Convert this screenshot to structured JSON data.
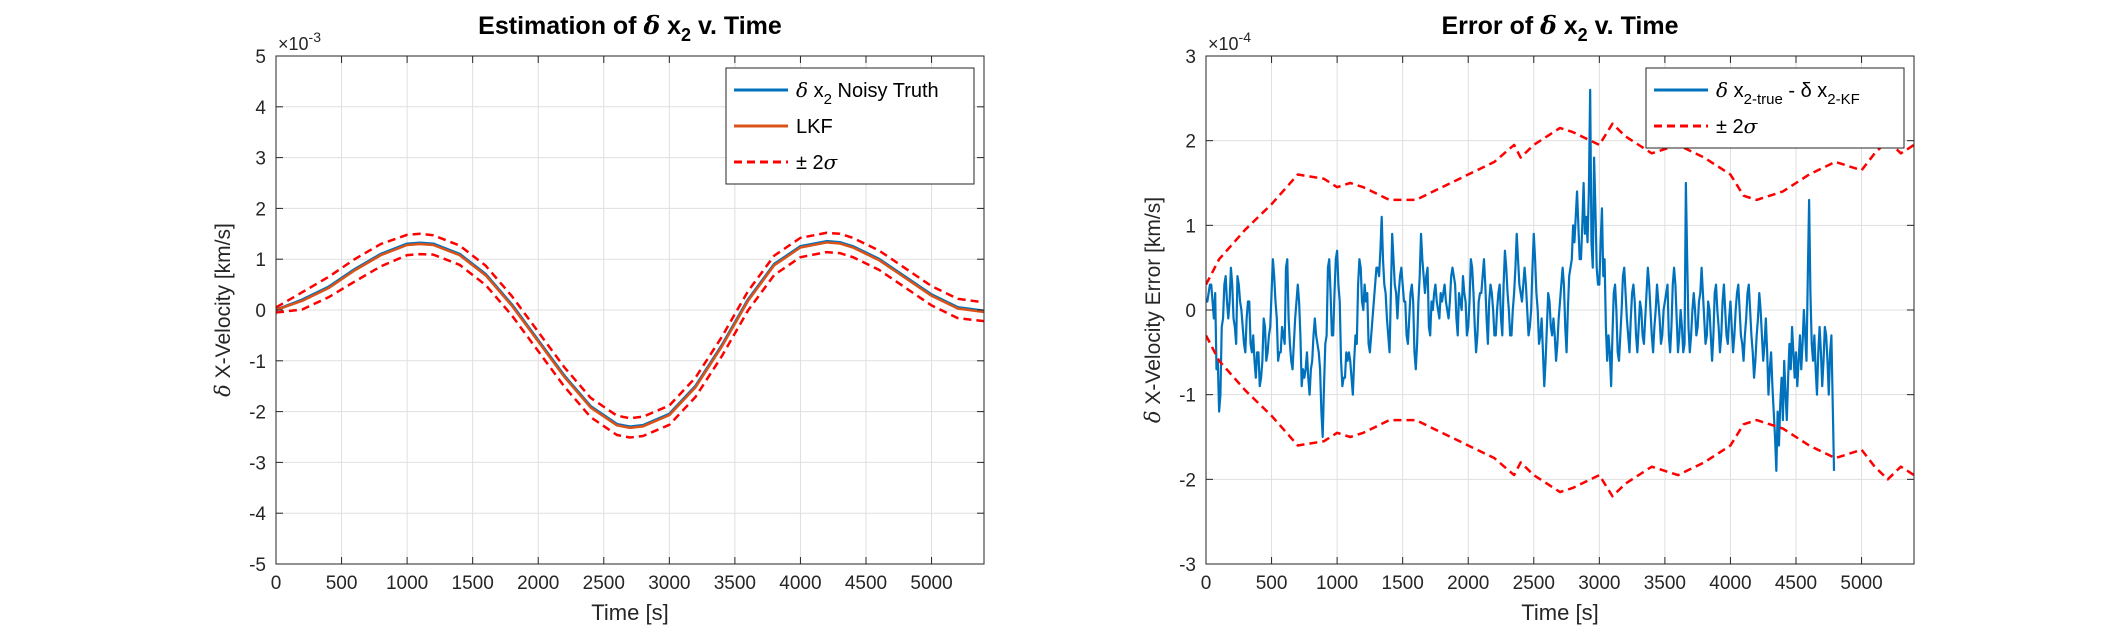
{
  "colors": {
    "series_blue": "#0072BD",
    "series_orange": "#D95319",
    "bound_red": "#FF0000",
    "grid": "#DFDFDF",
    "axis": "#262626",
    "text": "#262626"
  },
  "chart_data": [
    {
      "type": "line",
      "title": {
        "main": "Estimation of ",
        "sym": "δ",
        "x": " x",
        "sub": "2",
        "rest": " v. Time"
      },
      "xlabel": "Time [s]",
      "ylabel": {
        "sym": "δ",
        "text": " X-Velocity [km/s]"
      },
      "exponent": {
        "base": "×10",
        "power": "-3"
      },
      "xlim": [
        0,
        5400
      ],
      "ylim": [
        -5,
        5
      ],
      "xticks": [
        0,
        500,
        1000,
        1500,
        2000,
        2500,
        3000,
        3500,
        4000,
        4500,
        5000
      ],
      "yticks": [
        -5,
        -4,
        -3,
        -2,
        -1,
        0,
        1,
        2,
        3,
        4,
        5
      ],
      "grid": true,
      "legend_position": "top-right",
      "legend": [
        {
          "sym": "δ",
          "text": " x",
          "sub": "2",
          "rest": " Noisy Truth",
          "color_key": "series_blue",
          "dashed": false
        },
        {
          "sym": "",
          "text": "LKF",
          "sub": "",
          "rest": "",
          "color_key": "series_orange",
          "dashed": false
        },
        {
          "sym": "±",
          "text": " 2",
          "sub": "",
          "rest": "σ",
          "color_key": "bound_red",
          "dashed": true
        }
      ],
      "x": [
        0,
        200,
        400,
        600,
        800,
        1000,
        1100,
        1200,
        1400,
        1600,
        1800,
        2000,
        2200,
        2400,
        2600,
        2700,
        2800,
        3000,
        3200,
        3400,
        3600,
        3800,
        4000,
        4200,
        4300,
        4400,
        4600,
        4800,
        5000,
        5200,
        5400
      ],
      "series": [
        {
          "role": "truth",
          "color_key": "series_blue",
          "values": [
            0,
            0.2,
            0.45,
            0.8,
            1.1,
            1.3,
            1.32,
            1.3,
            1.1,
            0.7,
            0.1,
            -0.6,
            -1.3,
            -1.9,
            -2.25,
            -2.3,
            -2.27,
            -2.05,
            -1.5,
            -0.7,
            0.2,
            0.9,
            1.25,
            1.35,
            1.33,
            1.25,
            1.0,
            0.65,
            0.3,
            0.05,
            -0.02
          ]
        },
        {
          "role": "estimate",
          "color_key": "series_orange",
          "values": [
            0,
            0.18,
            0.43,
            0.78,
            1.08,
            1.28,
            1.3,
            1.28,
            1.08,
            0.68,
            0.08,
            -0.62,
            -1.32,
            -1.92,
            -2.27,
            -2.32,
            -2.29,
            -2.07,
            -1.52,
            -0.72,
            0.18,
            0.88,
            1.23,
            1.33,
            1.31,
            1.23,
            0.98,
            0.63,
            0.28,
            0.03,
            -0.04
          ]
        },
        {
          "role": "upper",
          "color_key": "bound_red",
          "dashed": true,
          "values": [
            0.05,
            0.35,
            0.65,
            1.0,
            1.3,
            1.48,
            1.5,
            1.47,
            1.27,
            0.87,
            0.27,
            -0.43,
            -1.13,
            -1.73,
            -2.08,
            -2.13,
            -2.1,
            -1.88,
            -1.33,
            -0.53,
            0.37,
            1.07,
            1.42,
            1.52,
            1.5,
            1.42,
            1.17,
            0.82,
            0.47,
            0.22,
            0.15
          ]
        },
        {
          "role": "lower",
          "color_key": "bound_red",
          "dashed": true,
          "values": [
            -0.05,
            0.01,
            0.25,
            0.56,
            0.86,
            1.08,
            1.1,
            1.09,
            0.89,
            0.49,
            -0.11,
            -0.81,
            -1.51,
            -2.11,
            -2.46,
            -2.51,
            -2.48,
            -2.26,
            -1.71,
            -0.91,
            -0.01,
            0.69,
            1.04,
            1.14,
            1.12,
            1.04,
            0.79,
            0.44,
            0.09,
            -0.16,
            -0.22
          ]
        }
      ]
    },
    {
      "type": "line",
      "title": {
        "main": "Error of ",
        "sym": "δ",
        "x": " x",
        "sub": "2",
        "rest": " v. Time"
      },
      "xlabel": "Time [s]",
      "ylabel": {
        "sym": "δ",
        "text": " X-Velocity Error [km/s]"
      },
      "exponent": {
        "base": "×10",
        "power": "-4"
      },
      "xlim": [
        0,
        5400
      ],
      "ylim": [
        -3,
        3
      ],
      "xticks": [
        0,
        500,
        1000,
        1500,
        2000,
        2500,
        3000,
        3500,
        4000,
        4500,
        5000
      ],
      "yticks": [
        -3,
        -2,
        -1,
        0,
        1,
        2,
        3
      ],
      "grid": true,
      "legend_position": "top-right",
      "legend": [
        {
          "sym": "δ",
          "text": " x",
          "sub": "2-true",
          "rest": " - δ x",
          "sub2": "2-KF",
          "color_key": "series_blue",
          "dashed": false
        },
        {
          "sym": "±",
          "text": " 2",
          "sub": "",
          "rest": "σ",
          "color_key": "bound_red",
          "dashed": true
        }
      ],
      "bound_x": [
        0,
        100,
        300,
        500,
        700,
        900,
        1000,
        1100,
        1200,
        1400,
        1600,
        1800,
        2000,
        2200,
        2350,
        2400,
        2500,
        2700,
        2800,
        3000,
        3100,
        3200,
        3400,
        3600,
        3800,
        4000,
        4100,
        4200,
        4400,
        4600,
        4800,
        5000,
        5100,
        5200,
        5300,
        5400
      ],
      "bound_values": [
        0.3,
        0.6,
        0.95,
        1.25,
        1.6,
        1.55,
        1.45,
        1.5,
        1.45,
        1.3,
        1.3,
        1.45,
        1.6,
        1.75,
        1.95,
        1.8,
        1.95,
        2.15,
        2.1,
        1.95,
        2.2,
        2.05,
        1.85,
        1.95,
        1.8,
        1.6,
        1.35,
        1.3,
        1.4,
        1.6,
        1.75,
        1.65,
        1.85,
        2.0,
        1.85,
        1.95
      ],
      "error_x_step": 10,
      "error_values": [
        0.1,
        0.1,
        0.2,
        0.3,
        0.3,
        0.1,
        -0.1,
        0.2,
        -0.7,
        -0.6,
        -1.2,
        -1.0,
        -0.2,
        -0.1,
        0.3,
        0.4,
        0.1,
        -0.1,
        0.1,
        0.5,
        0.3,
        -0.1,
        -0.2,
        -0.4,
        0.4,
        0.3,
        0.1,
        0.0,
        -0.2,
        -0.4,
        -0.5,
        -0.1,
        0.1,
        0.1,
        -0.4,
        -0.5,
        -0.3,
        -0.6,
        -0.8,
        -0.5,
        -0.5,
        -0.9,
        -0.8,
        -0.6,
        -0.1,
        -0.2,
        -0.6,
        -0.5,
        -0.3,
        -0.2,
        0.2,
        0.6,
        0.4,
        0.1,
        -0.1,
        -0.6,
        -0.5,
        -0.5,
        -0.2,
        -0.3,
        -0.4,
        0.5,
        0.6,
        -0.1,
        -0.4,
        -0.6,
        -0.7,
        -0.4,
        -0.1,
        0.1,
        0.3,
        0.1,
        -0.3,
        -0.9,
        -0.7,
        -0.8,
        -0.7,
        -0.5,
        -0.8,
        -1.0,
        -0.7,
        -0.6,
        -0.3,
        -0.1,
        -0.3,
        -0.4,
        -0.5,
        -0.7,
        -1.2,
        -1.5,
        -0.9,
        -0.4,
        -0.3,
        0.5,
        0.6,
        0.2,
        -0.3,
        -0.3,
        0.2,
        0.6,
        0.7,
        0.3,
        0.1,
        -0.6,
        -0.9,
        -0.8,
        -0.8,
        -0.5,
        -0.6,
        -0.5,
        -0.6,
        -0.8,
        -1.0,
        -0.6,
        -0.3,
        -0.4,
        0.3,
        0.6,
        0.5,
        0.1,
        0.0,
        0.3,
        0.1,
        0.2,
        -0.4,
        -0.5,
        -0.3,
        -0.1,
        0.1,
        0.3,
        0.5,
        0.5,
        0.4,
        0.7,
        1.1,
        0.6,
        0.3,
        0.2,
        -0.1,
        -0.3,
        -0.5,
        0.2,
        0.9,
        0.6,
        0.3,
        0.2,
        -0.1,
        0.2,
        0.4,
        0.5,
        0.3,
        0.1,
        0.1,
        -0.3,
        -0.4,
        -0.1,
        0.2,
        0.3,
        0.1,
        -0.5,
        -0.7,
        -0.4,
        0.1,
        0.4,
        0.9,
        0.6,
        0.4,
        0.2,
        0.4,
        0.5,
        -0.2,
        -0.3,
        0.1,
        0.0,
        0.2,
        0.3,
        0.1,
        0.0,
        -0.1,
        0.2,
        0.1,
        0.2,
        0.3,
        0.1,
        0.0,
        -0.1,
        0.1,
        0.4,
        0.5,
        0.4,
        0.3,
        -0.1,
        -0.3,
        0.2,
        0.1,
        0.0,
        0.4,
        0.2,
        0.1,
        -0.3,
        -0.2,
        0.1,
        0.6,
        0.5,
        0.2,
        -0.2,
        -0.5,
        -0.3,
        0.1,
        0.2,
        0.2,
        0.4,
        0.6,
        0.3,
        -0.1,
        -0.4,
        0.1,
        0.3,
        0.2,
        0.0,
        -0.3,
        -0.3,
        0.0,
        0.2,
        0.3,
        -0.1,
        -0.3,
        0.3,
        0.7,
        0.5,
        0.2,
        0.0,
        -0.3,
        -0.3,
        0.0,
        0.2,
        0.5,
        0.9,
        0.6,
        0.3,
        0.2,
        0.1,
        0.3,
        0.5,
        0.3,
        0.0,
        -0.3,
        -0.2,
        0.0,
        0.5,
        0.9,
        0.6,
        0.2,
        0.0,
        -0.4,
        -0.3,
        -0.1,
        -0.5,
        -0.9,
        -0.6,
        -0.2,
        0.2,
        0.1,
        -0.2,
        -0.3,
        -0.1,
        -0.3,
        -0.6,
        -0.4,
        -0.1,
        0.1,
        0.3,
        0.5,
        0.3,
        -0.2,
        -0.5,
        0.0,
        0.4,
        0.5,
        0.6,
        1.0,
        0.8,
        1.1,
        1.4,
        1.0,
        0.6,
        0.6,
        1.0,
        1.5,
        0.9,
        1.1,
        0.8,
        1.4,
        2.6,
        0.8,
        0.5,
        1.8,
        1.2,
        0.5,
        0.3,
        0.3,
        0.8,
        1.2,
        0.4,
        0.6,
        -0.2,
        -0.6,
        -0.3,
        -0.5,
        -0.9,
        -0.3,
        0.2,
        0.3,
        0.0,
        -0.5,
        -0.6,
        -0.3,
        0.0,
        0.4,
        0.5,
        0.2,
        -0.1,
        -0.3,
        -0.5,
        -0.1,
        0.2,
        0.3,
        0.1,
        -0.3,
        -0.5,
        -0.2,
        0.1,
        0.0,
        -0.3,
        -0.4,
        -0.1,
        0.2,
        0.5,
        0.3,
        0.0,
        -0.3,
        -0.5,
        -0.2,
        0.0,
        0.3,
        0.1,
        -0.1,
        -0.4,
        -0.3,
        0.0,
        0.1,
        0.2,
        0.3,
        -0.3,
        -0.5,
        -0.2,
        0.3,
        0.5,
        0.3,
        -0.1,
        -0.5,
        -0.3,
        0.0,
        -0.2,
        -0.5,
        -0.4,
        1.5,
        0.6,
        -0.2,
        -0.5,
        -0.3,
        0.0,
        0.2,
        0.0,
        -0.3,
        -0.2,
        0.1,
        0.2,
        0.5,
        0.2,
        -0.1,
        -0.4,
        -0.3,
        0.1,
        0.0,
        -0.3,
        -0.6,
        -0.3,
        0.2,
        0.3,
        0.0,
        -0.2,
        -0.5,
        -0.3,
        0.1,
        0.3,
        0.0,
        -0.3,
        -0.4,
        -0.1,
        0.1,
        -0.2,
        -0.5,
        -0.3,
        0.0,
        0.2,
        0.3,
        0.0,
        -0.3,
        -0.4,
        -0.6,
        -0.3,
        -0.1,
        0.2,
        0.3,
        0.0,
        -0.3,
        -0.5,
        -0.8,
        -0.6,
        -0.3,
        -0.1,
        0.2,
        0.0,
        -0.3,
        -0.6,
        -0.4,
        -0.1,
        -0.5,
        -1.0,
        -0.7,
        -0.5,
        -0.9,
        -1.2,
        -1.5,
        -1.9,
        -1.2,
        -1.6,
        -1.1,
        -0.8,
        -1.3,
        -0.6,
        -1.0,
        -1.3,
        -0.8,
        -0.4,
        -0.7,
        -0.2,
        -0.5,
        -0.8,
        -0.5,
        -0.9,
        -0.6,
        -0.3,
        -0.7,
        -0.4,
        0.0,
        -0.3,
        -0.6,
        0.4,
        1.3,
        0.2,
        -0.4,
        -0.6,
        -0.3,
        -0.7,
        -1.0,
        -0.5,
        -0.2,
        -0.5,
        -0.9,
        -0.6,
        -0.2,
        -0.3,
        -0.6,
        -1.0,
        -0.5,
        -0.3,
        -1.1,
        -1.9
      ]
    }
  ]
}
